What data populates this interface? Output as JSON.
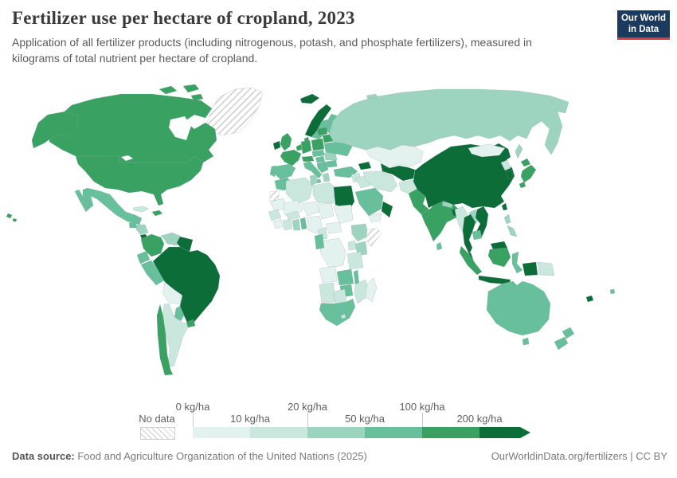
{
  "header": {
    "title": "Fertilizer use per hectare of cropland, 2023",
    "subtitle": "Application of all fertilizer products (including nitrogenous, potash, and phosphate fertilizers), measured in kilograms of total nutrient per hectare of cropland.",
    "logo_line1": "Our World",
    "logo_line2": "in Data",
    "logo_bg_color": "#1c3a5e",
    "logo_accent_color": "#d73c4c"
  },
  "footer": {
    "source_label": "Data source:",
    "source_text": " Food and Agriculture Organization of the United Nations (2025)",
    "right_text": "OurWorldinData.org/fertilizers | CC BY"
  },
  "chart_data": {
    "type": "heatmap",
    "subtype": "choropleth-world-map",
    "title": "Fertilizer use per hectare of cropland, 2023",
    "unit": "kg/ha",
    "legend": {
      "no_data_label": "No data",
      "tick_labels_top": [
        "0 kg/ha",
        "20 kg/ha",
        "100 kg/ha"
      ],
      "tick_labels_bottom": [
        "10 kg/ha",
        "50 kg/ha",
        "200 kg/ha"
      ],
      "bins": [
        {
          "label": "0-10 kg/ha",
          "color": "#e4f2ef"
        },
        {
          "label": "10-20 kg/ha",
          "color": "#c9e7dc"
        },
        {
          "label": "20-50 kg/ha",
          "color": "#9cd4c0"
        },
        {
          "label": "50-100 kg/ha",
          "color": "#68bf9c"
        },
        {
          "label": "100-200 kg/ha",
          "color": "#39a262"
        },
        {
          "label": "200+ kg/ha",
          "color": "#0c6d39"
        }
      ],
      "no_data_pattern": "diagonal-hatch"
    },
    "countries": [
      {
        "id": "greenland",
        "bin": -1
      },
      {
        "id": "western-sahara",
        "bin": -1
      },
      {
        "id": "somalia",
        "bin": -1
      },
      {
        "id": "canada",
        "bin": 4
      },
      {
        "id": "usa",
        "bin": 4
      },
      {
        "id": "mexico",
        "bin": 3
      },
      {
        "id": "cuba",
        "bin": 1
      },
      {
        "id": "hispaniola",
        "bin": 4
      },
      {
        "id": "guatemala",
        "bin": 3
      },
      {
        "id": "honduras-nicaragua",
        "bin": 2
      },
      {
        "id": "costa-rica",
        "bin": 5
      },
      {
        "id": "panama",
        "bin": 3
      },
      {
        "id": "colombia",
        "bin": 4
      },
      {
        "id": "venezuela",
        "bin": 2
      },
      {
        "id": "guianas",
        "bin": 5
      },
      {
        "id": "ecuador",
        "bin": 3
      },
      {
        "id": "peru",
        "bin": 3
      },
      {
        "id": "brazil",
        "bin": 5
      },
      {
        "id": "bolivia",
        "bin": 0
      },
      {
        "id": "paraguay",
        "bin": 3
      },
      {
        "id": "uruguay",
        "bin": 4
      },
      {
        "id": "argentina",
        "bin": 1
      },
      {
        "id": "chile",
        "bin": 4
      },
      {
        "id": "iceland",
        "bin": 5
      },
      {
        "id": "norway",
        "bin": 5
      },
      {
        "id": "sweden",
        "bin": 3
      },
      {
        "id": "finland",
        "bin": 3
      },
      {
        "id": "denmark",
        "bin": 4
      },
      {
        "id": "uk",
        "bin": 4
      },
      {
        "id": "ireland",
        "bin": 5
      },
      {
        "id": "france",
        "bin": 4
      },
      {
        "id": "spain",
        "bin": 3
      },
      {
        "id": "portugal",
        "bin": 3
      },
      {
        "id": "germany",
        "bin": 4
      },
      {
        "id": "benelux",
        "bin": 4
      },
      {
        "id": "poland",
        "bin": 4
      },
      {
        "id": "czech-slovakia",
        "bin": 3
      },
      {
        "id": "switz-austria",
        "bin": 4
      },
      {
        "id": "hungary",
        "bin": 3
      },
      {
        "id": "italy",
        "bin": 3
      },
      {
        "id": "balkans",
        "bin": 3
      },
      {
        "id": "greece",
        "bin": 2
      },
      {
        "id": "romania",
        "bin": 2
      },
      {
        "id": "bulgaria",
        "bin": 3
      },
      {
        "id": "ukraine",
        "bin": 3
      },
      {
        "id": "belarus",
        "bin": 4
      },
      {
        "id": "baltics",
        "bin": 4
      },
      {
        "id": "turkey",
        "bin": 3
      },
      {
        "id": "russia",
        "bin": 2
      },
      {
        "id": "kazakhstan",
        "bin": 0
      },
      {
        "id": "uzbek-turkmen",
        "bin": 5
      },
      {
        "id": "caucasus",
        "bin": 5
      },
      {
        "id": "kyrgyz-tajik",
        "bin": 2
      },
      {
        "id": "mongolia",
        "bin": 0
      },
      {
        "id": "iran",
        "bin": 1
      },
      {
        "id": "iraq",
        "bin": 1
      },
      {
        "id": "syria-levant",
        "bin": 1
      },
      {
        "id": "saudi-arabia",
        "bin": 3
      },
      {
        "id": "yemen",
        "bin": 0
      },
      {
        "id": "oman",
        "bin": 5
      },
      {
        "id": "afghanistan",
        "bin": 1
      },
      {
        "id": "pakistan",
        "bin": 4
      },
      {
        "id": "india",
        "bin": 4
      },
      {
        "id": "nepal",
        "bin": 2
      },
      {
        "id": "bangladesh",
        "bin": 5
      },
      {
        "id": "sri-lanka",
        "bin": 3
      },
      {
        "id": "china",
        "bin": 5
      },
      {
        "id": "north-korea",
        "bin": 1
      },
      {
        "id": "south-korea",
        "bin": 5
      },
      {
        "id": "japan",
        "bin": 4
      },
      {
        "id": "taiwan",
        "bin": 5
      },
      {
        "id": "myanmar",
        "bin": 1
      },
      {
        "id": "laos",
        "bin": 2
      },
      {
        "id": "vietnam",
        "bin": 5
      },
      {
        "id": "thailand",
        "bin": 5
      },
      {
        "id": "cambodia",
        "bin": 3
      },
      {
        "id": "malaysia-peninsula",
        "bin": 5
      },
      {
        "id": "malaysia-borneo",
        "bin": 5
      },
      {
        "id": "sumatra",
        "bin": 4
      },
      {
        "id": "java",
        "bin": 5
      },
      {
        "id": "kalimantan",
        "bin": 4
      },
      {
        "id": "sulawesi",
        "bin": 3
      },
      {
        "id": "philippines",
        "bin": 2
      },
      {
        "id": "papua-indonesia",
        "bin": 5
      },
      {
        "id": "papua-new-guinea",
        "bin": 1
      },
      {
        "id": "australia",
        "bin": 3
      },
      {
        "id": "tasmania",
        "bin": 3
      },
      {
        "id": "new-zealand",
        "bin": 3
      },
      {
        "id": "fiji",
        "bin": 3
      },
      {
        "id": "new-caledonia",
        "bin": 5
      },
      {
        "id": "morocco",
        "bin": 3
      },
      {
        "id": "algeria",
        "bin": 1
      },
      {
        "id": "tunisia",
        "bin": 2
      },
      {
        "id": "libya",
        "bin": 1
      },
      {
        "id": "egypt",
        "bin": 5
      },
      {
        "id": "mauritania",
        "bin": 0
      },
      {
        "id": "mali",
        "bin": 0
      },
      {
        "id": "niger",
        "bin": 0
      },
      {
        "id": "chad",
        "bin": 0
      },
      {
        "id": "sudan",
        "bin": 0
      },
      {
        "id": "senegal-guinea",
        "bin": 1
      },
      {
        "id": "sierra-liberia",
        "bin": 0
      },
      {
        "id": "cote-divoire",
        "bin": 1
      },
      {
        "id": "ghana",
        "bin": 2
      },
      {
        "id": "togo-benin",
        "bin": 3
      },
      {
        "id": "burkina-faso",
        "bin": 1
      },
      {
        "id": "nigeria",
        "bin": 0
      },
      {
        "id": "cameroon",
        "bin": 1
      },
      {
        "id": "central-african-republic",
        "bin": 0
      },
      {
        "id": "ethiopia",
        "bin": 2
      },
      {
        "id": "kenya",
        "bin": 2
      },
      {
        "id": "uganda",
        "bin": 1
      },
      {
        "id": "tanzania",
        "bin": 1
      },
      {
        "id": "drc",
        "bin": 0
      },
      {
        "id": "gabon-congo",
        "bin": 3
      },
      {
        "id": "angola",
        "bin": 0
      },
      {
        "id": "zambia",
        "bin": 3
      },
      {
        "id": "malawi",
        "bin": 3
      },
      {
        "id": "mozambique",
        "bin": 1
      },
      {
        "id": "zimbabwe",
        "bin": 3
      },
      {
        "id": "namibia",
        "bin": 1
      },
      {
        "id": "botswana",
        "bin": 1
      },
      {
        "id": "south-africa",
        "bin": 3
      },
      {
        "id": "lesotho",
        "bin": 1
      },
      {
        "id": "madagascar",
        "bin": 0
      }
    ]
  }
}
